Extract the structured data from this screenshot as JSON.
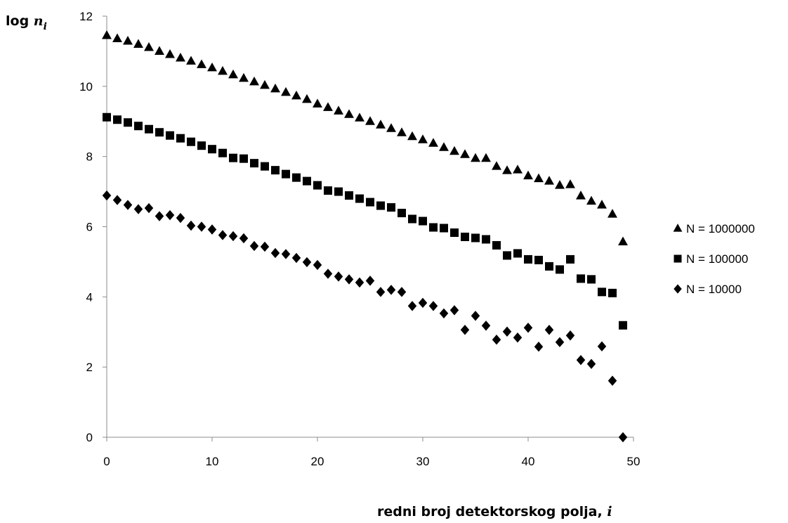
{
  "chart_data": {
    "type": "scatter",
    "ylabel": "log",
    "ylabel_symbol": "n",
    "ylabel_subscript": "i",
    "xlabel": "redni broj detektorskog polja,",
    "xlabel_symbol": "i",
    "xlim": [
      0,
      50
    ],
    "ylim": [
      0,
      12
    ],
    "xticks": [
      0,
      10,
      20,
      30,
      40,
      50
    ],
    "yticks": [
      0,
      2,
      4,
      6,
      8,
      10,
      12
    ],
    "grid": false,
    "legend_position": "right",
    "series": [
      {
        "name": "N = 1000000",
        "marker": "triangle",
        "color": "#000000",
        "x": [
          0,
          1,
          2,
          3,
          4,
          5,
          6,
          7,
          8,
          9,
          10,
          11,
          12,
          13,
          14,
          15,
          16,
          17,
          18,
          19,
          20,
          21,
          22,
          23,
          24,
          25,
          26,
          27,
          28,
          29,
          30,
          31,
          32,
          33,
          34,
          35,
          36,
          37,
          38,
          39,
          40,
          41,
          42,
          43,
          44,
          45,
          46,
          47,
          48,
          49
        ],
        "y": [
          11.45,
          11.36,
          11.29,
          11.2,
          11.11,
          11.0,
          10.91,
          10.81,
          10.72,
          10.62,
          10.53,
          10.43,
          10.33,
          10.23,
          10.13,
          10.03,
          9.93,
          9.83,
          9.73,
          9.63,
          9.5,
          9.4,
          9.3,
          9.2,
          9.1,
          9.0,
          8.9,
          8.8,
          8.68,
          8.57,
          8.48,
          8.38,
          8.26,
          8.15,
          8.06,
          7.95,
          7.95,
          7.72,
          7.6,
          7.62,
          7.45,
          7.37,
          7.3,
          7.18,
          7.2,
          6.88,
          6.73,
          6.62,
          6.36,
          5.57
        ]
      },
      {
        "name": "N = 100000",
        "marker": "square",
        "color": "#000000",
        "x": [
          0,
          1,
          2,
          3,
          4,
          5,
          6,
          7,
          8,
          9,
          10,
          11,
          12,
          13,
          14,
          15,
          16,
          17,
          18,
          19,
          20,
          21,
          22,
          23,
          24,
          25,
          26,
          27,
          28,
          29,
          30,
          31,
          32,
          33,
          34,
          35,
          36,
          37,
          38,
          39,
          40,
          41,
          42,
          43,
          44,
          45,
          46,
          47,
          48,
          49
        ],
        "y": [
          9.12,
          9.05,
          8.97,
          8.87,
          8.78,
          8.69,
          8.6,
          8.52,
          8.42,
          8.31,
          8.21,
          8.1,
          7.96,
          7.94,
          7.81,
          7.72,
          7.61,
          7.5,
          7.4,
          7.3,
          7.18,
          7.03,
          7.0,
          6.89,
          6.8,
          6.7,
          6.6,
          6.55,
          6.39,
          6.22,
          6.16,
          5.98,
          5.96,
          5.83,
          5.71,
          5.68,
          5.64,
          5.47,
          5.18,
          5.24,
          5.07,
          5.05,
          4.87,
          4.78,
          5.07,
          4.52,
          4.5,
          4.14,
          4.11,
          3.19
        ]
      },
      {
        "name": "N = 10000",
        "marker": "diamond",
        "color": "#000000",
        "x": [
          0,
          1,
          2,
          3,
          4,
          5,
          6,
          7,
          8,
          9,
          10,
          11,
          12,
          13,
          14,
          15,
          16,
          17,
          18,
          19,
          20,
          21,
          22,
          23,
          24,
          25,
          26,
          27,
          28,
          29,
          30,
          31,
          32,
          33,
          34,
          35,
          36,
          37,
          38,
          39,
          40,
          41,
          42,
          43,
          44,
          45,
          46,
          47,
          48,
          49
        ],
        "y": [
          6.89,
          6.76,
          6.62,
          6.5,
          6.53,
          6.3,
          6.33,
          6.25,
          6.03,
          6.0,
          5.92,
          5.76,
          5.73,
          5.67,
          5.45,
          5.43,
          5.25,
          5.22,
          5.11,
          4.99,
          4.91,
          4.66,
          4.58,
          4.5,
          4.41,
          4.46,
          4.14,
          4.2,
          4.14,
          3.74,
          3.83,
          3.74,
          3.53,
          3.62,
          3.06,
          3.46,
          3.18,
          2.78,
          3.01,
          2.84,
          3.12,
          2.58,
          3.06,
          2.71,
          2.9,
          2.2,
          2.09,
          2.59,
          1.61,
          0.0
        ]
      }
    ]
  }
}
